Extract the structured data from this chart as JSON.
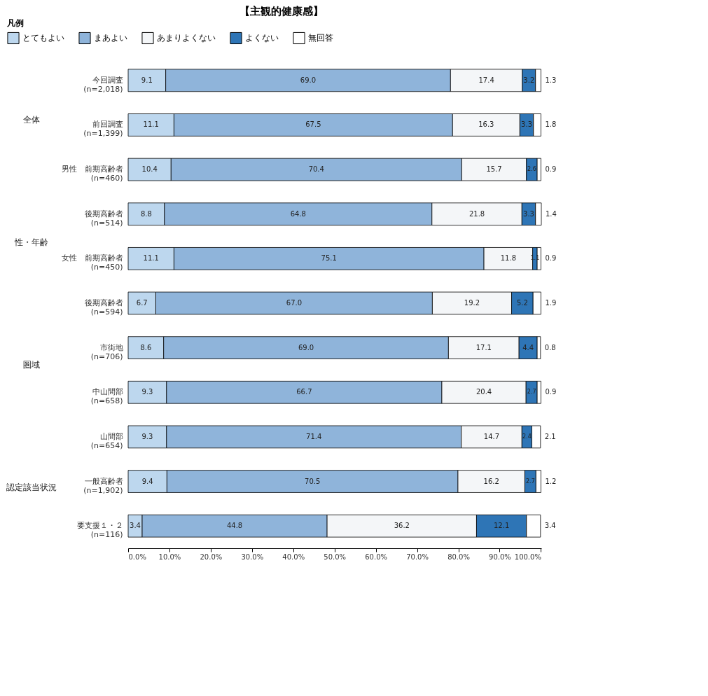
{
  "chart_data": {
    "type": "bar",
    "orientation": "horizontal",
    "stacked": true,
    "title": "【主観的健康感】",
    "legend_title": "凡例",
    "legend": "top",
    "categories": [
      "今回調査\n(n=2,018)",
      "前回調査\n(n=1,399)",
      "男性　前期高齢者\n(n=460)",
      "後期高齢者\n(n=514)",
      "女性　前期高齢者\n(n=450)",
      "後期高齢者\n(n=594)",
      "市街地\n(n=706)",
      "中山間部\n(n=658)",
      "山間部\n(n=654)",
      "一般高齢者\n(n=1,902)",
      "要支援１・２\n(n=116)"
    ],
    "series": [
      {
        "name": "とてもよい",
        "color": "#bdd7ee",
        "values": [
          9.1,
          11.1,
          10.4,
          8.8,
          11.1,
          6.7,
          8.6,
          9.3,
          9.3,
          9.4,
          3.4
        ],
        "value_labels": [
          "9.1",
          "11.1",
          "10.4",
          "8.8",
          "11.1",
          "6.7",
          "8.6",
          "9.3",
          "9.3",
          "9.4",
          "3.4"
        ]
      },
      {
        "name": "まあよい",
        "color": "#8fb4da",
        "values": [
          69.0,
          67.5,
          70.4,
          64.8,
          75.1,
          67.0,
          69.0,
          66.7,
          71.4,
          70.5,
          44.8
        ],
        "value_labels": [
          "69.0",
          "67.5",
          "70.4",
          "64.8",
          "75.1",
          "67.0",
          "69.0",
          "66.7",
          "71.4",
          "70.5",
          "44.8"
        ]
      },
      {
        "name": "あまりよくない",
        "color": "#f4f6f8",
        "values": [
          17.4,
          16.3,
          15.7,
          21.8,
          11.8,
          19.2,
          17.1,
          20.4,
          14.7,
          16.2,
          36.2
        ],
        "value_labels": [
          "17.4",
          "16.3",
          "15.7",
          "21.8",
          "11.8",
          "19.2",
          "17.1",
          "20.4",
          "14.7",
          "16.2",
          "36.2"
        ]
      },
      {
        "name": "よくない",
        "color": "#2e75b6",
        "values": [
          3.2,
          3.3,
          2.6,
          3.3,
          1.1,
          5.2,
          4.4,
          2.7,
          2.4,
          2.7,
          12.1
        ],
        "value_labels": [
          "3.2",
          "3.3",
          "2.6",
          "3.3",
          "1.1",
          "5.2",
          "4.4",
          "2.7",
          "2.4",
          "2.7",
          "12.1"
        ]
      },
      {
        "name": "無回答",
        "color": "#ffffff",
        "values": [
          1.3,
          1.8,
          0.9,
          1.4,
          0.9,
          1.9,
          0.8,
          0.9,
          2.1,
          1.2,
          3.4
        ],
        "value_labels": [
          "1.3",
          "1.8",
          "0.9",
          "1.4",
          "0.9",
          "1.9",
          "0.8",
          "0.9",
          "2.1",
          "1.2",
          "3.4"
        ]
      }
    ],
    "xlim": [
      0,
      100.1
    ],
    "xticks": [
      {
        "value": 0,
        "label": "0.0%"
      },
      {
        "value": 10,
        "label": "10.0%"
      },
      {
        "value": 20,
        "label": "20.0%"
      },
      {
        "value": 30,
        "label": "30.0%"
      },
      {
        "value": 40,
        "label": "40.0%"
      },
      {
        "value": 50,
        "label": "50.0%"
      },
      {
        "value": 60,
        "label": "60.0%"
      },
      {
        "value": 70,
        "label": "70.0%"
      },
      {
        "value": 80,
        "label": "80.0%"
      },
      {
        "value": 90,
        "label": "90.0%"
      },
      {
        "value": 100,
        "label": "100.0%"
      }
    ],
    "annotations": [
      "全体",
      "性・年齢",
      "圏域",
      "認定該当状況"
    ]
  }
}
